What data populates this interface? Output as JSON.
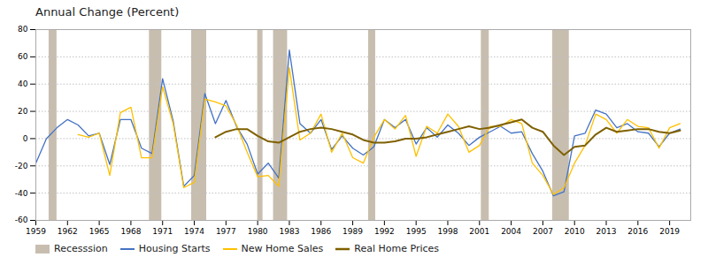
{
  "chart_data": {
    "type": "line",
    "title": "Annual Change (Percent)",
    "x": [
      1959,
      1960,
      1961,
      1962,
      1963,
      1964,
      1965,
      1966,
      1967,
      1968,
      1969,
      1970,
      1971,
      1972,
      1973,
      1974,
      1975,
      1976,
      1977,
      1978,
      1979,
      1980,
      1981,
      1982,
      1983,
      1984,
      1985,
      1986,
      1987,
      1988,
      1989,
      1990,
      1991,
      1992,
      1993,
      1994,
      1995,
      1996,
      1997,
      1998,
      1999,
      2000,
      2001,
      2002,
      2003,
      2004,
      2005,
      2006,
      2007,
      2008,
      2009,
      2010,
      2011,
      2012,
      2013,
      2014,
      2015,
      2016,
      2017,
      2018,
      2019,
      2020
    ],
    "series": [
      {
        "name": "Housing Starts",
        "color": "#4472c4",
        "values": [
          -18,
          0,
          8,
          14,
          10,
          2,
          4,
          -19,
          14,
          14,
          -7,
          -11,
          44,
          13,
          -35,
          -27,
          33,
          11,
          28,
          9,
          -4,
          -26,
          -18,
          -29,
          65,
          11,
          4,
          14,
          -8,
          2,
          -7,
          -12,
          -6,
          14,
          8,
          14,
          -4,
          8,
          1,
          10,
          4,
          -5,
          1,
          5,
          9,
          4,
          5,
          -11,
          -24,
          -42,
          -39,
          2,
          4,
          21,
          18,
          8,
          11,
          5,
          4,
          -6,
          4,
          7
        ]
      },
      {
        "name": "New Home Sales",
        "color": "#ffc000",
        "values": [
          null,
          null,
          null,
          null,
          3,
          1,
          4,
          -27,
          19,
          23,
          -14,
          -14,
          38,
          11,
          -36,
          -32,
          29,
          27,
          24,
          10,
          -10,
          -28,
          -27,
          -35,
          52,
          -1,
          4,
          18,
          -10,
          4,
          -14,
          -18,
          1,
          14,
          7,
          17,
          -13,
          9,
          4,
          18,
          9,
          -10,
          -5,
          9,
          9,
          14,
          11,
          -18,
          -27,
          -41,
          -36,
          -18,
          -5,
          18,
          14,
          4,
          14,
          9,
          8,
          -7,
          8,
          11
        ]
      },
      {
        "name": "Real Home Prices",
        "color": "#7f6000",
        "values": [
          null,
          null,
          null,
          null,
          null,
          null,
          null,
          null,
          null,
          null,
          null,
          null,
          null,
          null,
          null,
          null,
          null,
          1,
          5,
          7,
          7,
          2,
          -2,
          -3,
          1,
          5,
          7,
          8,
          7,
          5,
          3,
          -1,
          -3,
          -3,
          -2,
          0,
          0,
          1,
          3,
          5,
          7,
          9,
          7,
          8,
          10,
          12,
          14,
          8,
          5,
          -5,
          -12,
          -6,
          -5,
          3,
          8,
          5,
          6,
          7,
          7,
          5,
          4,
          6
        ]
      }
    ],
    "recessions": {
      "name": "Recesssion",
      "color": "#c8beb0",
      "periods": [
        [
          1960.25,
          1961.0
        ],
        [
          1969.75,
          1970.92
        ],
        [
          1973.75,
          1975.17
        ],
        [
          1980.0,
          1980.5
        ],
        [
          1981.5,
          1982.83
        ],
        [
          1990.5,
          1991.17
        ],
        [
          2001.17,
          2001.92
        ],
        [
          2007.92,
          2009.5
        ]
      ]
    },
    "xlim": [
      1959,
      2021
    ],
    "xticks": [
      1959,
      1962,
      1965,
      1968,
      1971,
      1974,
      1977,
      1980,
      1983,
      1986,
      1989,
      1992,
      1995,
      1998,
      2001,
      2004,
      2007,
      2010,
      2013,
      2016,
      2019
    ],
    "ylim": [
      -60,
      80
    ],
    "yticks": [
      -60,
      -40,
      -20,
      0,
      20,
      40,
      60,
      80
    ],
    "grid": "y",
    "legend": "bottom"
  }
}
